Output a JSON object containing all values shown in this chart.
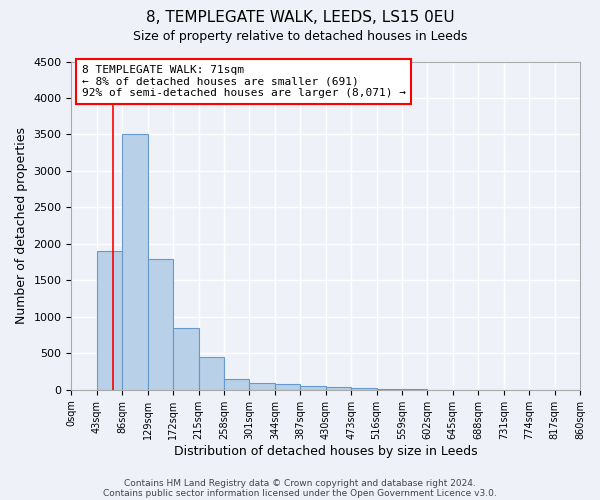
{
  "title1": "8, TEMPLEGATE WALK, LEEDS, LS15 0EU",
  "title2": "Size of property relative to detached houses in Leeds",
  "xlabel": "Distribution of detached houses by size in Leeds",
  "ylabel": "Number of detached properties",
  "bar_values": [
    0,
    1900,
    3500,
    1800,
    850,
    450,
    150,
    100,
    80,
    50,
    40,
    30,
    10,
    5,
    3,
    2,
    1,
    1,
    0,
    0,
    0
  ],
  "bin_edges": [
    0,
    43,
    86,
    129,
    172,
    215,
    258,
    301,
    344,
    387,
    430,
    473,
    516,
    559,
    602,
    645,
    688,
    731,
    774,
    817,
    860
  ],
  "bar_color": "#b8d0e8",
  "bar_edge_color": "#6699cc",
  "red_line_x": 71,
  "ylim": [
    0,
    4500
  ],
  "annotation_text": "8 TEMPLEGATE WALK: 71sqm\n← 8% of detached houses are smaller (691)\n92% of semi-detached houses are larger (8,071) →",
  "footer1": "Contains HM Land Registry data © Crown copyright and database right 2024.",
  "footer2": "Contains public sector information licensed under the Open Government Licence v3.0.",
  "background_color": "#eef2f8",
  "grid_color": "#ffffff",
  "tick_labels": [
    "0sqm",
    "43sqm",
    "86sqm",
    "129sqm",
    "172sqm",
    "215sqm",
    "258sqm",
    "301sqm",
    "344sqm",
    "387sqm",
    "430sqm",
    "473sqm",
    "516sqm",
    "559sqm",
    "602sqm",
    "645sqm",
    "688sqm",
    "731sqm",
    "774sqm",
    "817sqm",
    "860sqm"
  ],
  "title1_fontsize": 11,
  "title2_fontsize": 9,
  "xlabel_fontsize": 9,
  "ylabel_fontsize": 9,
  "annotation_fontsize": 8,
  "yticks": [
    0,
    500,
    1000,
    1500,
    2000,
    2500,
    3000,
    3500,
    4000,
    4500
  ]
}
